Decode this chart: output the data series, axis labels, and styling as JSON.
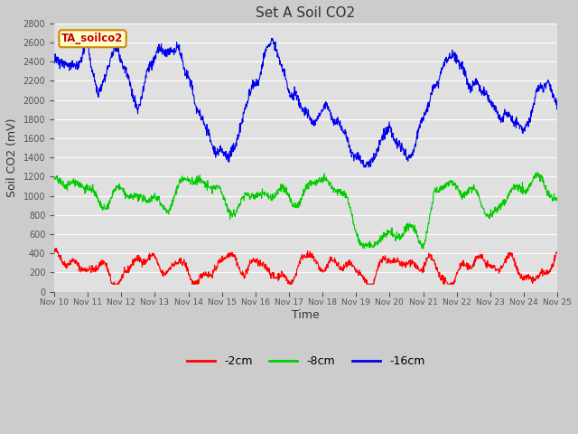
{
  "title": "Set A Soil CO2",
  "xlabel": "Time",
  "ylabel": "Soil CO2 (mV)",
  "ylim": [
    0,
    2800
  ],
  "yticks": [
    0,
    200,
    400,
    600,
    800,
    1000,
    1200,
    1400,
    1600,
    1800,
    2000,
    2200,
    2400,
    2600,
    2800
  ],
  "xtick_labels": [
    "Nov 10",
    "Nov 11",
    "Nov 12",
    "Nov 13",
    "Nov 14",
    "Nov 15",
    "Nov 16",
    "Nov 17",
    "Nov 18",
    "Nov 19",
    "Nov 20",
    "Nov 21",
    "Nov 22",
    "Nov 23",
    "Nov 24",
    "Nov 25"
  ],
  "annotation_text": "TA_soilco2",
  "annotation_bg": "#ffffcc",
  "annotation_border": "#cc8800",
  "annotation_text_color": "#cc0000",
  "legend_entries": [
    "-2cm",
    "-8cm",
    "-16cm"
  ],
  "line_colors": [
    "#ff0000",
    "#00cc00",
    "#0000ee"
  ],
  "bg_color": "#cccccc",
  "plot_bg_color": "#e0e0e0",
  "grid_color": "#ffffff",
  "num_points": 1500
}
